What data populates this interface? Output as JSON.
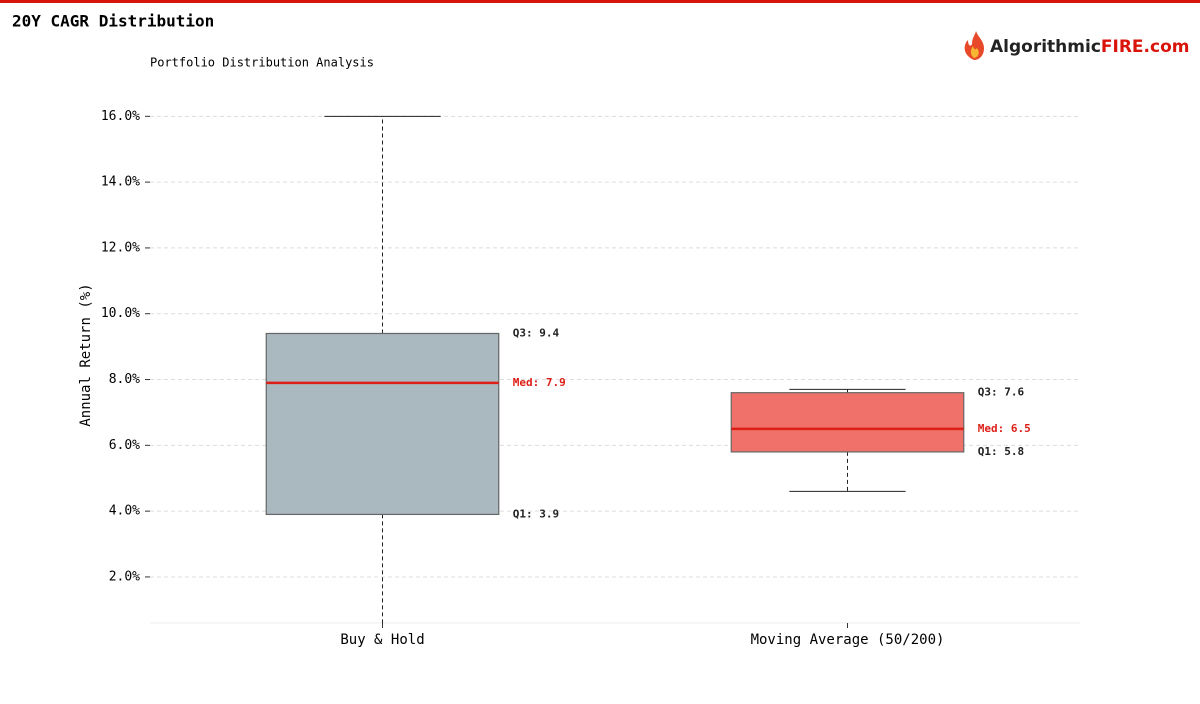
{
  "chart_data": {
    "type": "box",
    "title": "20Y CAGR Distribution",
    "subtitle": "Portfolio Distribution Analysis",
    "logo": {
      "text_a": "Algorithmic",
      "text_b": "FIRE.com"
    },
    "ylabel": "Annual Return (%)",
    "categories": [
      "Buy & Hold",
      "Moving Average (50/200)"
    ],
    "boxes": [
      {
        "color": "#aab9bf",
        "whisker_low": 0.4,
        "q1": 3.9,
        "median": 7.9,
        "q3": 9.4,
        "whisker_high": 16.0,
        "value_labels": {
          "q1": "Q1: 3.9",
          "median": "Med: 7.9",
          "q3": "Q3: 9.4"
        }
      },
      {
        "color": "#ef7169",
        "whisker_low": 4.6,
        "q1": 5.8,
        "median": 6.5,
        "q3": 7.6,
        "whisker_high": 7.7,
        "value_labels": {
          "q1": "Q1: 5.8",
          "median": "Med: 6.5",
          "q3": "Q3: 7.6"
        }
      }
    ],
    "median_color": "#dd1f17",
    "ylim": [
      0.6,
      16.8
    ],
    "yticks": [
      {
        "value": 2,
        "label": "2.0%"
      },
      {
        "value": 4,
        "label": "4.0%"
      },
      {
        "value": 6,
        "label": "6.0%"
      },
      {
        "value": 8,
        "label": "8.0%"
      },
      {
        "value": 10,
        "label": "10.0%"
      },
      {
        "value": 12,
        "label": "12.0%"
      },
      {
        "value": 14,
        "label": "14.0%"
      },
      {
        "value": 16,
        "label": "16.0%"
      }
    ],
    "grid": true
  }
}
